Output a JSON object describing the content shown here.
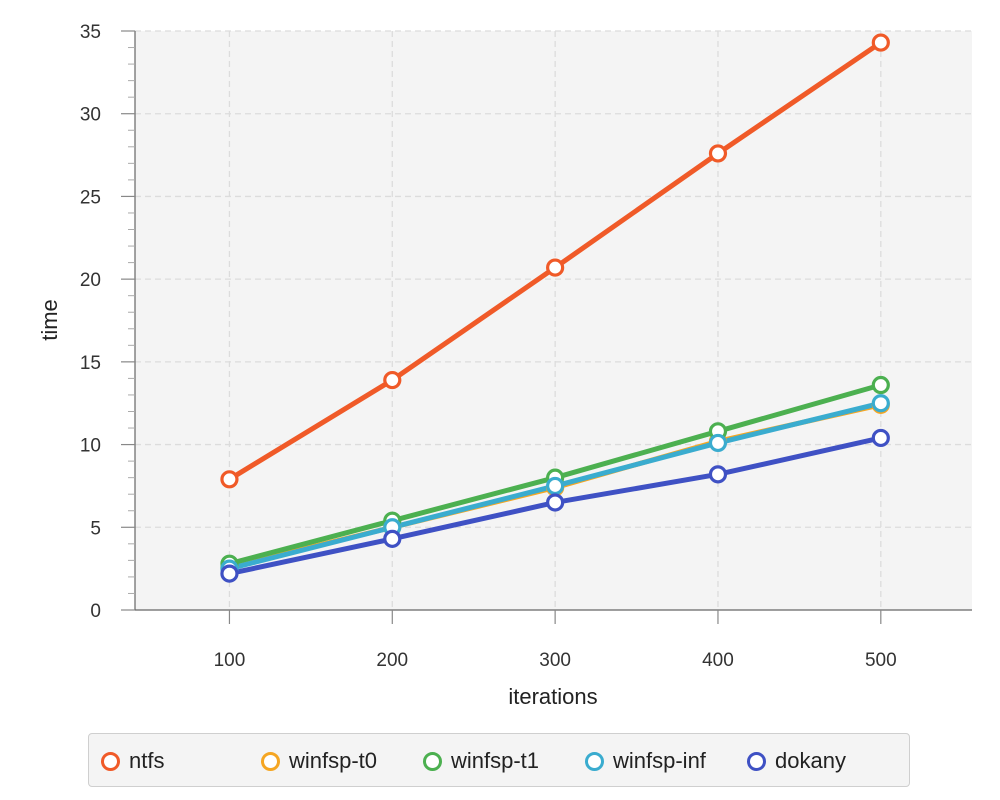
{
  "chart_data": {
    "type": "line",
    "xlabel": "iterations",
    "ylabel": "time",
    "x": [
      100,
      200,
      300,
      400,
      500
    ],
    "xticks": [
      100,
      200,
      300,
      400,
      500
    ],
    "yticks": [
      0,
      5,
      10,
      15,
      20,
      25,
      30,
      35
    ],
    "xlim": [
      42,
      556
    ],
    "ylim": [
      0,
      35
    ],
    "grid": true,
    "legend_position": "bottom",
    "series": [
      {
        "name": "ntfs",
        "color": "#f05a28",
        "values": [
          7.9,
          13.9,
          20.7,
          27.6,
          34.3
        ]
      },
      {
        "name": "winfsp-t0",
        "color": "#f5a623",
        "values": [
          2.6,
          5.0,
          7.4,
          10.2,
          12.4
        ]
      },
      {
        "name": "winfsp-t1",
        "color": "#4cb050",
        "values": [
          2.8,
          5.4,
          8.0,
          10.8,
          13.6
        ]
      },
      {
        "name": "winfsp-inf",
        "color": "#3aaccf",
        "values": [
          2.5,
          5.0,
          7.5,
          10.1,
          12.5
        ]
      },
      {
        "name": "dokany",
        "color": "#3f51c4",
        "values": [
          2.2,
          4.3,
          6.5,
          8.2,
          10.4
        ]
      }
    ]
  }
}
